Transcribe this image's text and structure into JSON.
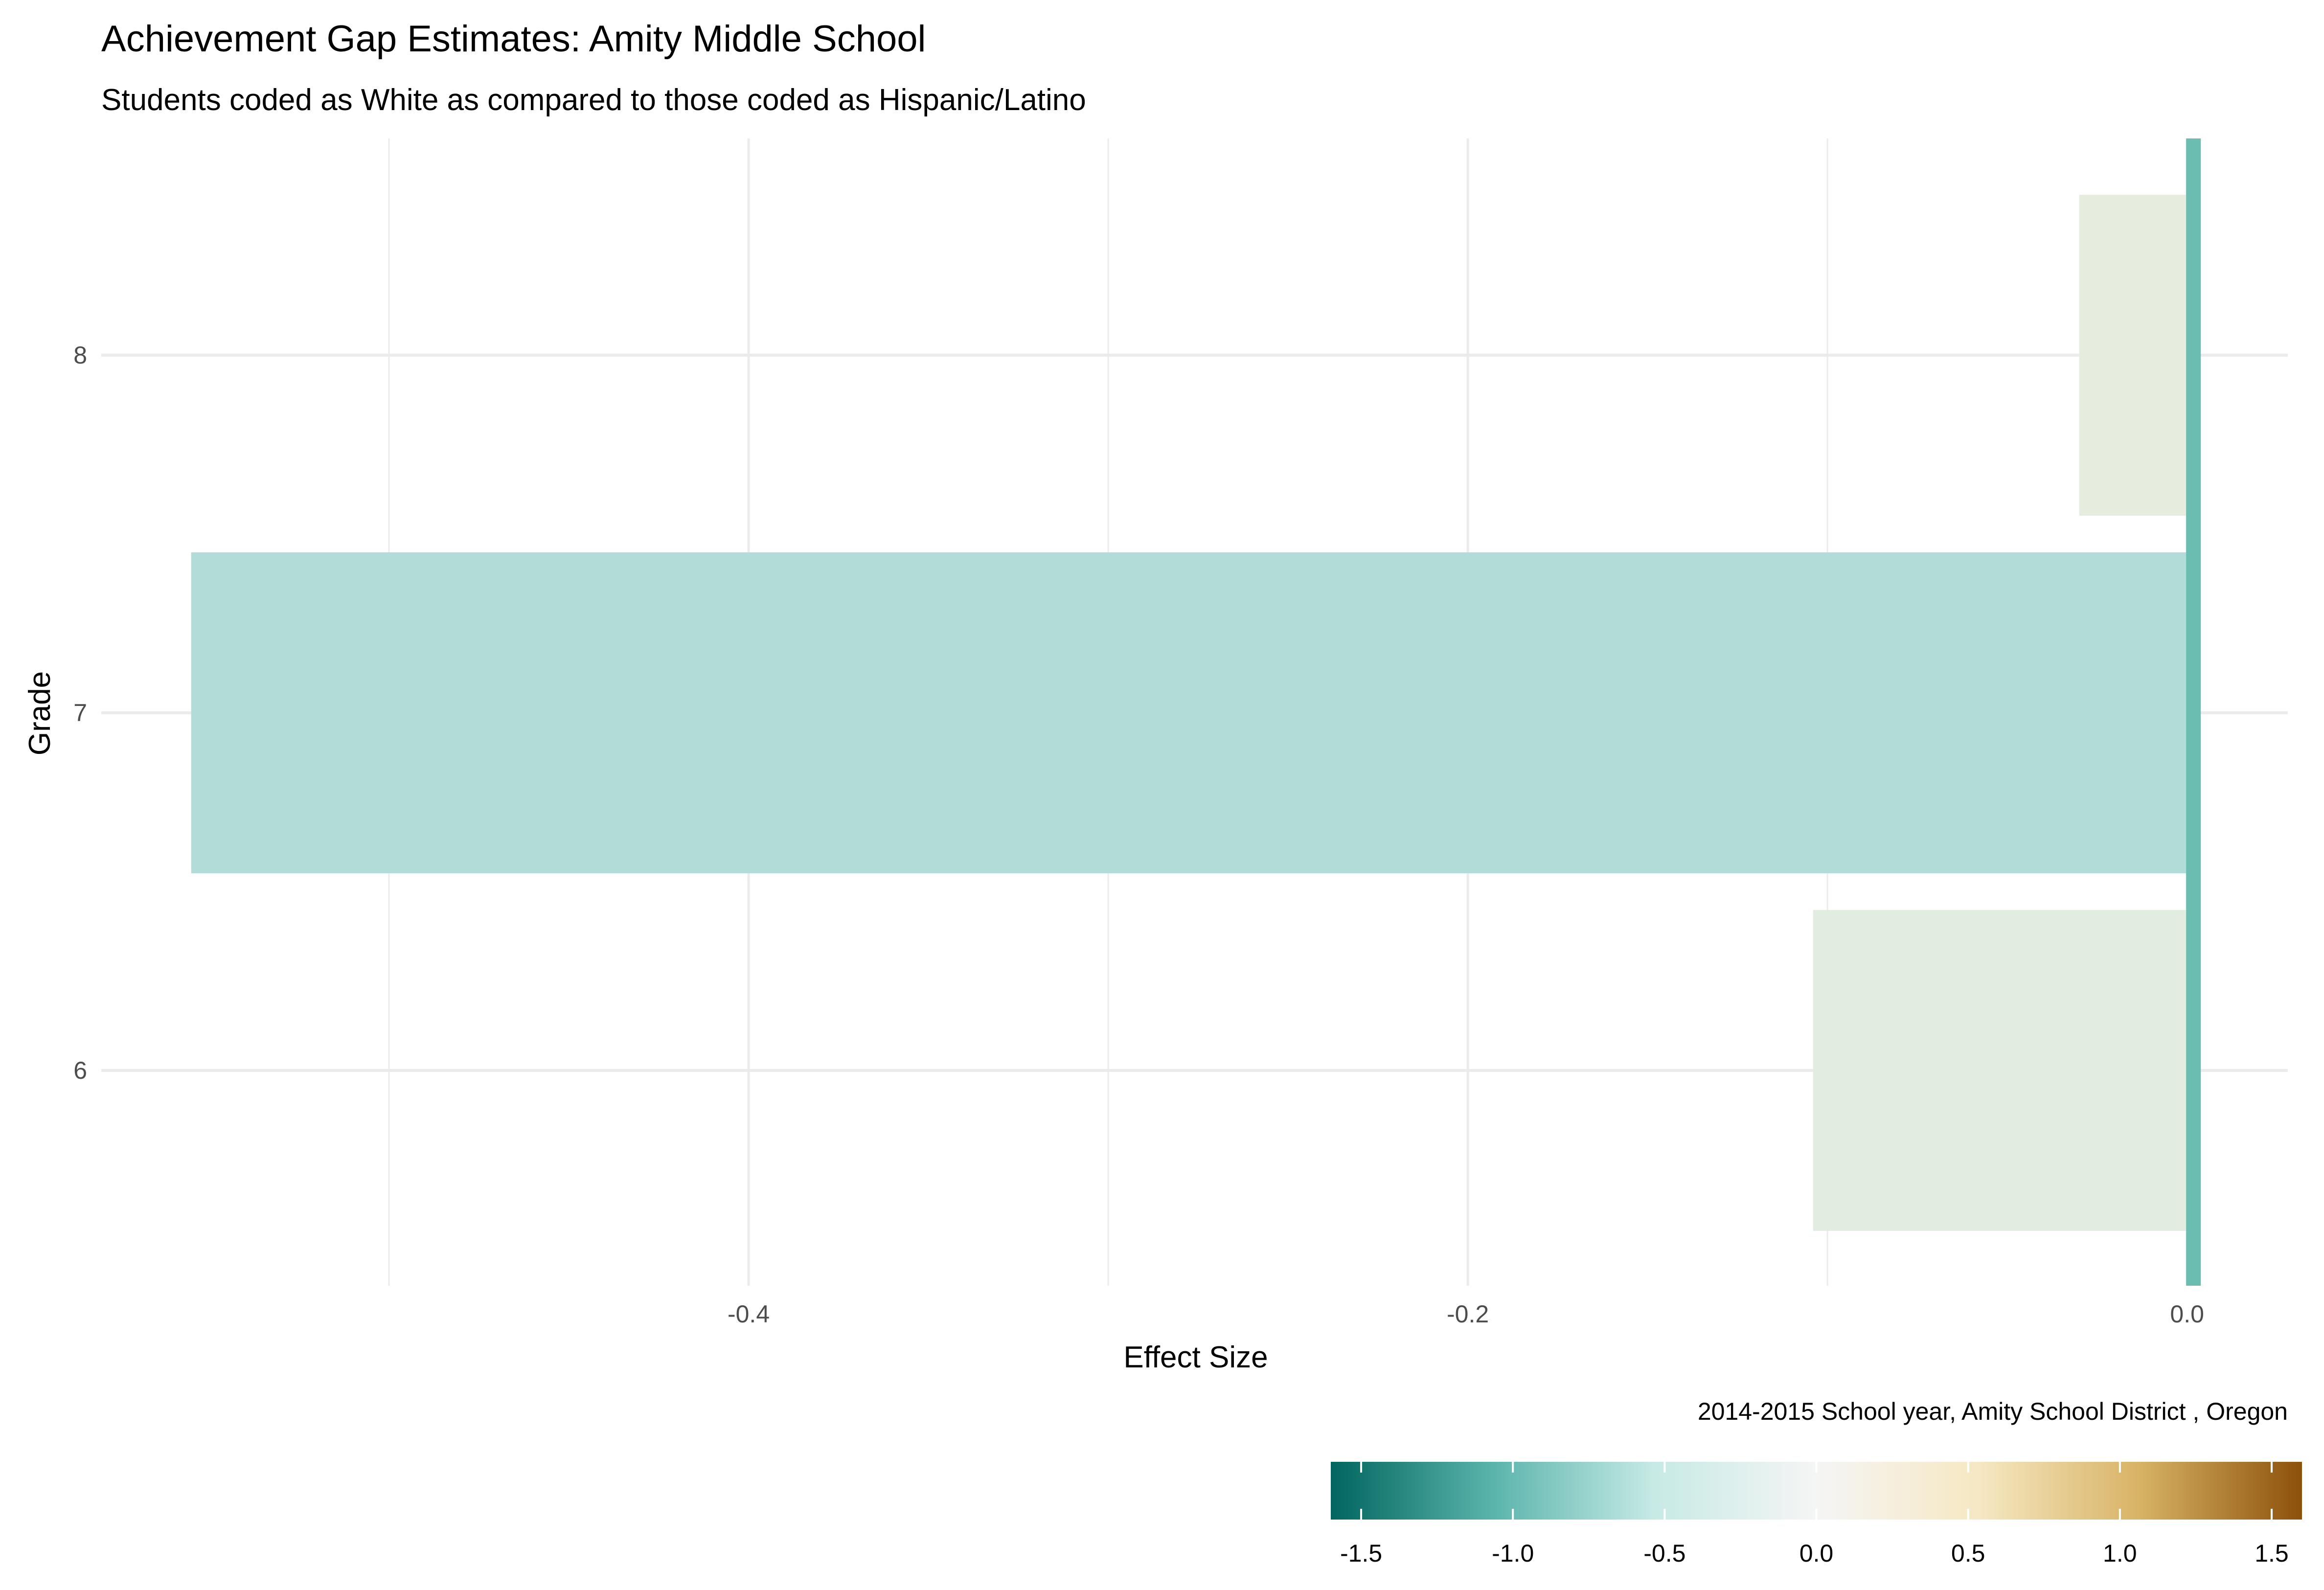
{
  "chart_data": {
    "type": "bar",
    "orientation": "horizontal",
    "title": "Achievement Gap Estimates: Amity Middle School",
    "subtitle": "Students coded as White as compared to those coded as Hispanic/Latino",
    "xlabel": "Effect Size",
    "ylabel": "Grade",
    "caption": "2014-2015 School year,  Amity School District , Oregon",
    "categories": [
      "6",
      "7",
      "8"
    ],
    "values": [
      -0.104,
      -0.555,
      -0.03
    ],
    "bar_colors": [
      "#e0ede0",
      "#b2dcd7",
      "#e6edde"
    ],
    "xlim": [
      -0.58,
      0.028
    ],
    "x_ticks": [
      "-0.4",
      "-0.2",
      "0.0"
    ],
    "x_tick_values": [
      -0.4,
      -0.2,
      0.0
    ],
    "x_minor_values": [
      -0.5,
      -0.3,
      -0.1
    ],
    "zero_line_color": "#6bbdb1",
    "grid": true,
    "legend": {
      "type": "colorbar",
      "placement": "bottom-right",
      "range": [
        -1.6,
        1.6
      ],
      "ticks": [
        "-1.5",
        "-1.0",
        "-0.5",
        "0.0",
        "0.5",
        "1.0",
        "1.5"
      ],
      "tick_values": [
        -1.5,
        -1.0,
        -0.5,
        0.0,
        0.5,
        1.0,
        1.5
      ],
      "colors": [
        "#01665e",
        "#5ab4ac",
        "#c7eae5",
        "#f5f5f5",
        "#f6e8c3",
        "#d8b365",
        "#8c510a"
      ]
    }
  }
}
